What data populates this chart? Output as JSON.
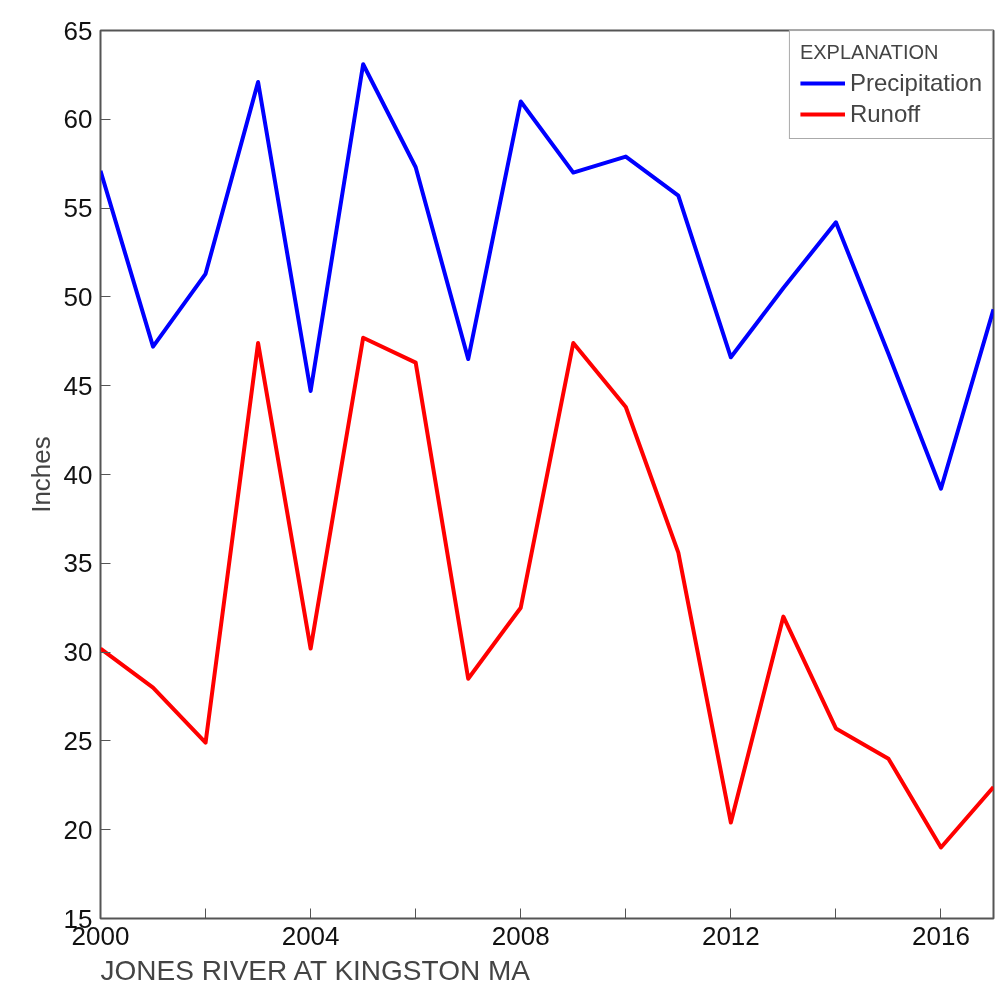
{
  "chart_data": {
    "type": "line",
    "title": "JONES RIVER AT KINGSTON MA",
    "ylabel": "Inches",
    "legend_title": "EXPLANATION",
    "x": [
      2000,
      2001,
      2002,
      2003,
      2004,
      2005,
      2006,
      2007,
      2008,
      2009,
      2010,
      2011,
      2012,
      2013,
      2014,
      2015,
      2016,
      2017
    ],
    "series": [
      {
        "name": "Precipitation",
        "color": "#0000ff",
        "values": [
          57.1,
          47.2,
          51.3,
          62.1,
          44.7,
          63.1,
          57.3,
          46.5,
          61.0,
          57.0,
          57.9,
          55.7,
          46.6,
          50.5,
          54.2,
          46.8,
          39.2,
          49.3
        ]
      },
      {
        "name": "Runoff",
        "color": "#ff0000",
        "values": [
          30.2,
          28.0,
          24.9,
          47.4,
          30.2,
          47.7,
          46.3,
          28.5,
          32.5,
          47.4,
          43.8,
          35.6,
          20.4,
          32.0,
          25.7,
          24.0,
          19.0,
          22.4
        ]
      }
    ],
    "xlim": [
      2000,
      2017
    ],
    "xticks": [
      2000,
      {
        "value": 2002,
        "label": null
      },
      2004,
      {
        "value": 2006,
        "label": null
      },
      2008,
      {
        "value": 2010,
        "label": null
      },
      2012,
      {
        "value": 2014,
        "label": null
      },
      2016
    ],
    "ylim": [
      15,
      65
    ],
    "yticks": [
      15,
      20,
      25,
      30,
      35,
      40,
      45,
      50,
      55,
      60,
      65
    ],
    "grid": false,
    "legend": "top right",
    "marker": "none",
    "line_style": "solid"
  }
}
